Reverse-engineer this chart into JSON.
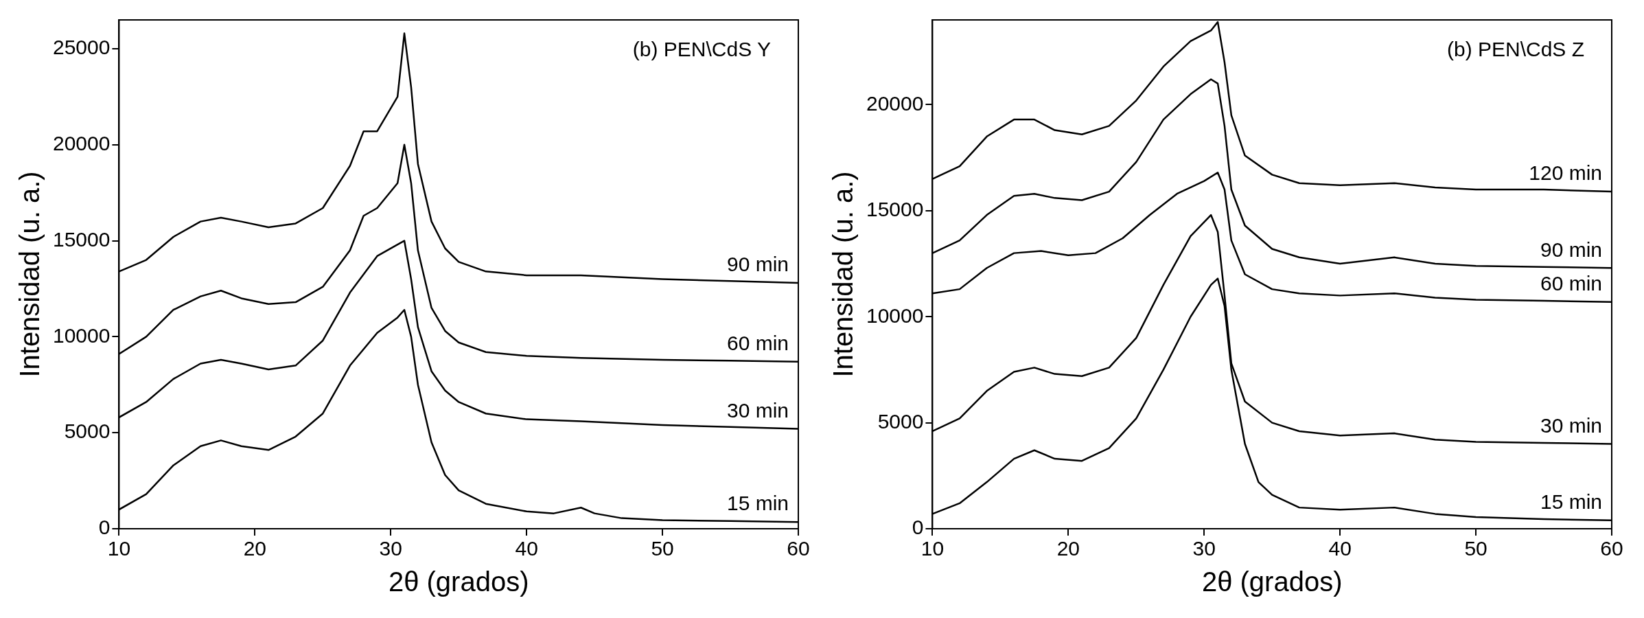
{
  "chart_data": [
    {
      "type": "line",
      "title": "(b) PEN\\CdS Y",
      "xlabel": "2θ (grados)",
      "ylabel": "Intensidad (u. a.)",
      "xlim": [
        10,
        60
      ],
      "xticks": [
        10,
        20,
        30,
        40,
        50,
        60
      ],
      "ylim": [
        0,
        26500
      ],
      "yticks": [
        0,
        5000,
        10000,
        15000,
        20000,
        25000
      ],
      "marker": "none",
      "line_style": "solid",
      "legend": false,
      "grid": false,
      "series": [
        {
          "name": "15 min",
          "color": "#000000",
          "x": [
            10,
            12,
            14,
            16,
            17.5,
            19,
            21,
            23,
            25,
            27,
            29,
            30.5,
            31,
            31.5,
            32,
            33,
            34,
            35,
            37,
            40,
            42,
            44,
            45,
            47,
            50,
            55,
            60
          ],
          "values": [
            1000,
            1800,
            3300,
            4300,
            4600,
            4300,
            4100,
            4800,
            6000,
            8500,
            10200,
            11000,
            11400,
            10000,
            7500,
            4500,
            2800,
            2000,
            1300,
            900,
            800,
            1100,
            800,
            550,
            450,
            400,
            350
          ]
        },
        {
          "name": "30 min",
          "color": "#000000",
          "x": [
            10,
            12,
            14,
            16,
            17.5,
            19,
            21,
            23,
            25,
            27,
            29,
            30.5,
            31,
            31.5,
            32,
            33,
            34,
            35,
            37,
            40,
            44,
            47,
            50,
            55,
            60
          ],
          "values": [
            5800,
            6600,
            7800,
            8600,
            8800,
            8600,
            8300,
            8500,
            9800,
            12300,
            14200,
            14800,
            15000,
            13000,
            10500,
            8200,
            7200,
            6600,
            6000,
            5700,
            5600,
            5500,
            5400,
            5300,
            5200
          ]
        },
        {
          "name": "60 min",
          "color": "#000000",
          "x": [
            10,
            12,
            14,
            16,
            17.5,
            19,
            21,
            23,
            25,
            27,
            28,
            29,
            30.5,
            31,
            31.5,
            32,
            33,
            34,
            35,
            37,
            40,
            44,
            50,
            55,
            60
          ],
          "values": [
            9100,
            10000,
            11400,
            12100,
            12400,
            12000,
            11700,
            11800,
            12600,
            14500,
            16300,
            16700,
            18000,
            20000,
            18000,
            14500,
            11500,
            10300,
            9700,
            9200,
            9000,
            8900,
            8800,
            8750,
            8700
          ]
        },
        {
          "name": "90 min",
          "color": "#000000",
          "x": [
            10,
            12,
            14,
            16,
            17.5,
            19,
            21,
            23,
            25,
            27,
            28,
            29,
            30.5,
            31,
            31.5,
            32,
            33,
            34,
            35,
            37,
            40,
            44,
            50,
            55,
            60
          ],
          "values": [
            13400,
            14000,
            15200,
            16000,
            16200,
            16000,
            15700,
            15900,
            16700,
            18900,
            20700,
            20700,
            22500,
            25800,
            23000,
            19000,
            16000,
            14600,
            13900,
            13400,
            13200,
            13200,
            13000,
            12900,
            12800
          ]
        }
      ]
    },
    {
      "type": "line",
      "title": "(b) PEN\\CdS Z",
      "xlabel": "2θ (grados)",
      "ylabel": "Intensidad (u. a.)",
      "xlim": [
        10,
        60
      ],
      "xticks": [
        10,
        20,
        30,
        40,
        50,
        60
      ],
      "ylim": [
        0,
        24000
      ],
      "yticks": [
        0,
        5000,
        10000,
        15000,
        20000
      ],
      "marker": "none",
      "line_style": "solid",
      "legend": false,
      "grid": false,
      "series": [
        {
          "name": "15 min",
          "color": "#000000",
          "x": [
            10,
            12,
            14,
            16,
            17.5,
            19,
            21,
            23,
            25,
            27,
            29,
            30.5,
            31,
            31.5,
            32,
            33,
            34,
            35,
            37,
            40,
            44,
            47,
            50,
            55,
            60
          ],
          "values": [
            700,
            1200,
            2200,
            3300,
            3700,
            3300,
            3200,
            3800,
            5200,
            7500,
            10000,
            11500,
            11800,
            10500,
            7500,
            4000,
            2200,
            1600,
            1000,
            900,
            1000,
            700,
            550,
            450,
            400
          ]
        },
        {
          "name": "30 min",
          "color": "#000000",
          "x": [
            10,
            12,
            14,
            16,
            17.5,
            19,
            21,
            23,
            25,
            27,
            29,
            30.5,
            31,
            31.5,
            32,
            33,
            35,
            37,
            40,
            44,
            47,
            50,
            55,
            60
          ],
          "values": [
            4600,
            5200,
            6500,
            7400,
            7600,
            7300,
            7200,
            7600,
            9000,
            11500,
            13800,
            14800,
            14000,
            11000,
            7800,
            6000,
            5000,
            4600,
            4400,
            4500,
            4200,
            4100,
            4050,
            4000
          ]
        },
        {
          "name": "60 min",
          "color": "#000000",
          "x": [
            10,
            12,
            14,
            16,
            18,
            20,
            22,
            24,
            26,
            28,
            30,
            31,
            31.5,
            32,
            33,
            35,
            37,
            40,
            44,
            47,
            50,
            55,
            60
          ],
          "values": [
            11100,
            11300,
            12300,
            13000,
            13100,
            12900,
            13000,
            13700,
            14800,
            15800,
            16400,
            16800,
            16000,
            13600,
            12000,
            11300,
            11100,
            11000,
            11100,
            10900,
            10800,
            10750,
            10700
          ]
        },
        {
          "name": "90 min",
          "color": "#000000",
          "x": [
            10,
            12,
            14,
            16,
            17.5,
            19,
            21,
            23,
            25,
            27,
            29,
            30.5,
            31,
            31.5,
            32,
            33,
            35,
            37,
            40,
            44,
            47,
            50,
            55,
            60
          ],
          "values": [
            13000,
            13600,
            14800,
            15700,
            15800,
            15600,
            15500,
            15900,
            17300,
            19300,
            20500,
            21200,
            21000,
            19000,
            16000,
            14300,
            13200,
            12800,
            12500,
            12800,
            12500,
            12400,
            12350,
            12300
          ]
        },
        {
          "name": "120 min",
          "color": "#000000",
          "x": [
            10,
            12,
            14,
            16,
            17.5,
            19,
            21,
            23,
            25,
            27,
            29,
            30.5,
            31,
            31.5,
            32,
            33,
            35,
            37,
            40,
            44,
            47,
            50,
            55,
            60
          ],
          "values": [
            16500,
            17100,
            18500,
            19300,
            19300,
            18800,
            18600,
            19000,
            20200,
            21800,
            23000,
            23500,
            23900,
            22000,
            19500,
            17600,
            16700,
            16300,
            16200,
            16300,
            16100,
            16000,
            16000,
            15900
          ]
        }
      ]
    }
  ]
}
